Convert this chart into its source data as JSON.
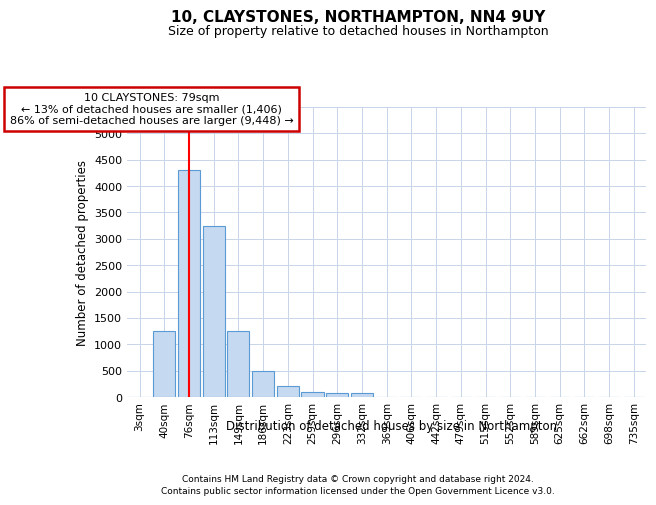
{
  "title": "10, CLAYSTONES, NORTHAMPTON, NN4 9UY",
  "subtitle": "Size of property relative to detached houses in Northampton",
  "xlabel": "Distribution of detached houses by size in Northampton",
  "ylabel": "Number of detached properties",
  "footer_line1": "Contains HM Land Registry data © Crown copyright and database right 2024.",
  "footer_line2": "Contains public sector information licensed under the Open Government Licence v3.0.",
  "bin_labels": [
    "3sqm",
    "40sqm",
    "76sqm",
    "113sqm",
    "149sqm",
    "186sqm",
    "223sqm",
    "259sqm",
    "296sqm",
    "332sqm",
    "369sqm",
    "406sqm",
    "442sqm",
    "479sqm",
    "515sqm",
    "552sqm",
    "589sqm",
    "625sqm",
    "662sqm",
    "698sqm",
    "735sqm"
  ],
  "bar_values": [
    0,
    1250,
    4300,
    3250,
    1250,
    500,
    200,
    100,
    75,
    75,
    0,
    0,
    0,
    0,
    0,
    0,
    0,
    0,
    0,
    0,
    0
  ],
  "bar_color": "#c5d9f0",
  "bar_edge_color": "#5b9bd5",
  "red_line_index": 2,
  "annotation_text": "10 CLAYSTONES: 79sqm\n← 13% of detached houses are smaller (1,406)\n86% of semi-detached houses are larger (9,448) →",
  "annotation_box_color": "#ffffff",
  "annotation_box_edge": "#cc0000",
  "ylim": [
    0,
    5500
  ],
  "yticks": [
    0,
    500,
    1000,
    1500,
    2000,
    2500,
    3000,
    3500,
    4000,
    4500,
    5000,
    5500
  ],
  "background_color": "#ffffff",
  "grid_color": "#c8d4e8"
}
